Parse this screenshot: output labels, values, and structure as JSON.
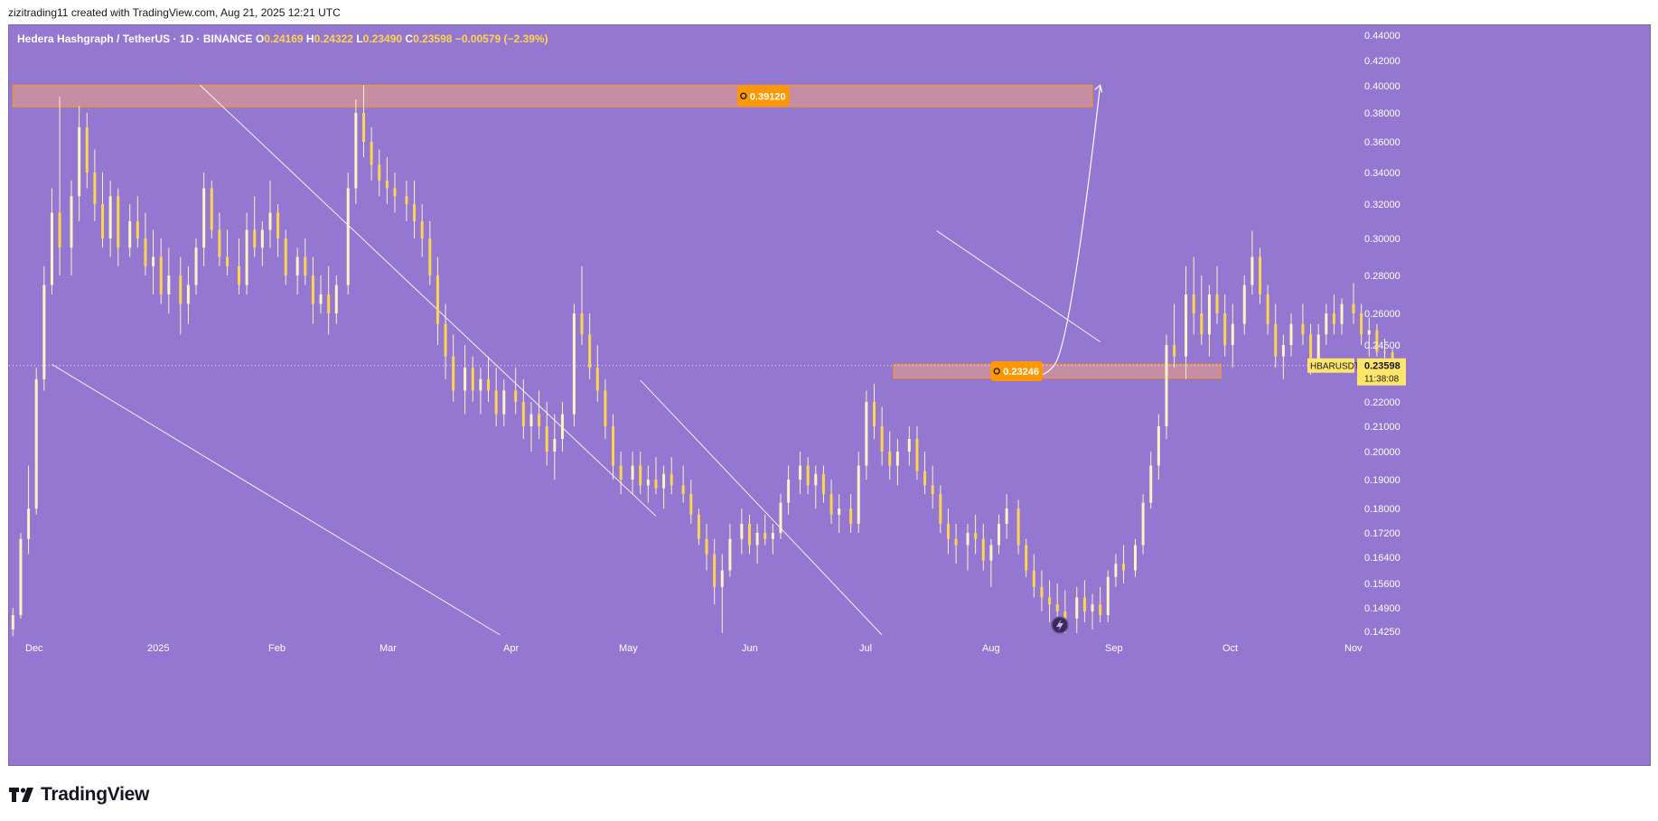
{
  "caption": "zizitrading11 created with TradingView.com, Aug 21, 2025 12:21 UTC",
  "brand": "TradingView",
  "colors": {
    "background": "#9377d0",
    "candle": "#ffd54d",
    "candle_wick": "#fff3c4",
    "zone_fill": "#f0a080",
    "zone_border": "#ff9800",
    "label_bg": "#ff9800",
    "line": "#ffffff"
  },
  "header": {
    "symbol": "Hedera Hashgraph / TetherUS · 1D · BINANCE",
    "o_label": "O",
    "o": "0.24169",
    "h_label": "H",
    "h": "0.24322",
    "l_label": "L",
    "l": "0.23490",
    "c_label": "C",
    "c": "0.23598",
    "change": "−0.00579 (−2.39%)"
  },
  "chart_data": {
    "type": "candlestick",
    "symbol": "HBARUSDT",
    "last_price": "0.23598",
    "countdown": "11:38:08",
    "x_ticks": [
      "Dec",
      "2025",
      "Feb",
      "Mar",
      "Apr",
      "May",
      "Jun",
      "Jul",
      "Aug",
      "Sep",
      "Oct",
      "Nov"
    ],
    "y_ticks": [
      "0.44000",
      "0.42000",
      "0.40000",
      "0.38000",
      "0.36000",
      "0.34000",
      "0.32000",
      "0.30000",
      "0.28000",
      "0.26000",
      "0.24500",
      "0.23598",
      "0.22000",
      "0.21000",
      "0.20000",
      "0.19000",
      "0.18000",
      "0.17200",
      "0.16400",
      "0.15600",
      "0.14900",
      "0.14250"
    ],
    "y_range": [
      0.14,
      0.445
    ],
    "x_range": [
      "2024-11-28",
      "2025-11-08"
    ],
    "zones": [
      {
        "label": "0.39120",
        "top": 0.4005,
        "bottom": 0.3845,
        "from": "2024-11-29",
        "to": "2025-09-02"
      },
      {
        "label": "0.23246",
        "top": 0.2365,
        "bottom": 0.2305,
        "from": "2025-07-13",
        "to": "2025-10-05"
      }
    ],
    "trendlines": [
      {
        "from": [
          "2025-01-16",
          0.4005
        ],
        "to": [
          "2025-05-13",
          0.1775
        ]
      },
      {
        "from": [
          "2024-12-09",
          0.2365
        ],
        "to": [
          "2025-04-03",
          0.1415
        ]
      },
      {
        "from": [
          "2025-05-09",
          0.2295
        ],
        "to": [
          "2025-07-10",
          0.1415
        ]
      },
      {
        "from": [
          "2025-07-24",
          0.3045
        ],
        "to": [
          "2025-09-04",
          0.2465
        ]
      }
    ],
    "projection": {
      "from": [
        "2025-08-19",
        0.2305
      ],
      "to": [
        "2025-09-04",
        0.4005
      ]
    },
    "candles_ohlc": [
      [
        0.143,
        0.149,
        0.141,
        0.147
      ],
      [
        0.147,
        0.172,
        0.146,
        0.17
      ],
      [
        0.17,
        0.195,
        0.165,
        0.18
      ],
      [
        0.18,
        0.235,
        0.178,
        0.23
      ],
      [
        0.23,
        0.285,
        0.225,
        0.275
      ],
      [
        0.275,
        0.33,
        0.27,
        0.315
      ],
      [
        0.315,
        0.392,
        0.28,
        0.295
      ],
      [
        0.295,
        0.335,
        0.28,
        0.325
      ],
      [
        0.325,
        0.385,
        0.31,
        0.37
      ],
      [
        0.37,
        0.38,
        0.33,
        0.34
      ],
      [
        0.34,
        0.355,
        0.31,
        0.32
      ],
      [
        0.32,
        0.34,
        0.295,
        0.3
      ],
      [
        0.3,
        0.335,
        0.29,
        0.325
      ],
      [
        0.325,
        0.33,
        0.285,
        0.295
      ],
      [
        0.295,
        0.32,
        0.29,
        0.31
      ],
      [
        0.31,
        0.325,
        0.295,
        0.3
      ],
      [
        0.3,
        0.315,
        0.28,
        0.285
      ],
      [
        0.285,
        0.305,
        0.27,
        0.29
      ],
      [
        0.29,
        0.3,
        0.265,
        0.27
      ],
      [
        0.27,
        0.295,
        0.26,
        0.28
      ],
      [
        0.28,
        0.29,
        0.25,
        0.265
      ],
      [
        0.265,
        0.285,
        0.255,
        0.275
      ],
      [
        0.275,
        0.3,
        0.27,
        0.295
      ],
      [
        0.295,
        0.34,
        0.285,
        0.33
      ],
      [
        0.33,
        0.335,
        0.3,
        0.305
      ],
      [
        0.305,
        0.315,
        0.285,
        0.29
      ],
      [
        0.29,
        0.305,
        0.28,
        0.285
      ],
      [
        0.285,
        0.3,
        0.27,
        0.275
      ],
      [
        0.275,
        0.315,
        0.27,
        0.305
      ],
      [
        0.305,
        0.325,
        0.29,
        0.295
      ],
      [
        0.295,
        0.31,
        0.285,
        0.305
      ],
      [
        0.305,
        0.335,
        0.295,
        0.315
      ],
      [
        0.315,
        0.32,
        0.29,
        0.3
      ],
      [
        0.3,
        0.305,
        0.275,
        0.28
      ],
      [
        0.28,
        0.295,
        0.27,
        0.29
      ],
      [
        0.29,
        0.3,
        0.275,
        0.28
      ],
      [
        0.28,
        0.29,
        0.255,
        0.265
      ],
      [
        0.265,
        0.28,
        0.26,
        0.27
      ],
      [
        0.27,
        0.285,
        0.25,
        0.26
      ],
      [
        0.26,
        0.28,
        0.255,
        0.275
      ],
      [
        0.275,
        0.34,
        0.27,
        0.33
      ],
      [
        0.33,
        0.39,
        0.32,
        0.38
      ],
      [
        0.38,
        0.4005,
        0.35,
        0.36
      ],
      [
        0.36,
        0.37,
        0.335,
        0.345
      ],
      [
        0.345,
        0.355,
        0.325,
        0.335
      ],
      [
        0.335,
        0.35,
        0.32,
        0.33
      ],
      [
        0.33,
        0.34,
        0.315,
        0.325
      ],
      [
        0.325,
        0.335,
        0.31,
        0.32
      ],
      [
        0.32,
        0.335,
        0.3,
        0.31
      ],
      [
        0.31,
        0.32,
        0.29,
        0.3
      ],
      [
        0.3,
        0.31,
        0.275,
        0.28
      ],
      [
        0.28,
        0.29,
        0.245,
        0.255
      ],
      [
        0.255,
        0.265,
        0.23,
        0.24
      ],
      [
        0.24,
        0.25,
        0.22,
        0.225
      ],
      [
        0.225,
        0.245,
        0.215,
        0.235
      ],
      [
        0.235,
        0.24,
        0.22,
        0.225
      ],
      [
        0.225,
        0.235,
        0.215,
        0.23
      ],
      [
        0.23,
        0.24,
        0.22,
        0.225
      ],
      [
        0.225,
        0.235,
        0.21,
        0.215
      ],
      [
        0.215,
        0.23,
        0.21,
        0.225
      ],
      [
        0.225,
        0.235,
        0.215,
        0.22
      ],
      [
        0.22,
        0.23,
        0.205,
        0.21
      ],
      [
        0.21,
        0.22,
        0.2,
        0.215
      ],
      [
        0.215,
        0.225,
        0.205,
        0.21
      ],
      [
        0.21,
        0.22,
        0.195,
        0.2
      ],
      [
        0.2,
        0.215,
        0.19,
        0.205
      ],
      [
        0.205,
        0.22,
        0.2,
        0.215
      ],
      [
        0.215,
        0.265,
        0.21,
        0.26
      ],
      [
        0.26,
        0.285,
        0.245,
        0.25
      ],
      [
        0.25,
        0.26,
        0.23,
        0.235
      ],
      [
        0.235,
        0.245,
        0.22,
        0.225
      ],
      [
        0.225,
        0.23,
        0.205,
        0.21
      ],
      [
        0.21,
        0.215,
        0.19,
        0.195
      ],
      [
        0.195,
        0.2,
        0.185,
        0.19
      ],
      [
        0.19,
        0.2,
        0.185,
        0.195
      ],
      [
        0.195,
        0.2,
        0.185,
        0.188
      ],
      [
        0.188,
        0.195,
        0.182,
        0.19
      ],
      [
        0.19,
        0.198,
        0.185,
        0.187
      ],
      [
        0.187,
        0.195,
        0.18,
        0.192
      ],
      [
        0.192,
        0.198,
        0.185,
        0.188
      ],
      [
        0.188,
        0.195,
        0.182,
        0.185
      ],
      [
        0.185,
        0.19,
        0.175,
        0.178
      ],
      [
        0.178,
        0.18,
        0.168,
        0.17
      ],
      [
        0.17,
        0.175,
        0.16,
        0.165
      ],
      [
        0.165,
        0.17,
        0.15,
        0.155
      ],
      [
        0.155,
        0.165,
        0.142,
        0.16
      ],
      [
        0.16,
        0.175,
        0.158,
        0.17
      ],
      [
        0.17,
        0.18,
        0.165,
        0.175
      ],
      [
        0.175,
        0.178,
        0.165,
        0.168
      ],
      [
        0.168,
        0.175,
        0.162,
        0.172
      ],
      [
        0.172,
        0.178,
        0.168,
        0.17
      ],
      [
        0.17,
        0.175,
        0.165,
        0.172
      ],
      [
        0.172,
        0.185,
        0.17,
        0.182
      ],
      [
        0.182,
        0.195,
        0.178,
        0.19
      ],
      [
        0.19,
        0.2,
        0.185,
        0.195
      ],
      [
        0.195,
        0.198,
        0.185,
        0.188
      ],
      [
        0.188,
        0.195,
        0.18,
        0.192
      ],
      [
        0.192,
        0.195,
        0.182,
        0.185
      ],
      [
        0.185,
        0.19,
        0.175,
        0.178
      ],
      [
        0.178,
        0.185,
        0.172,
        0.18
      ],
      [
        0.18,
        0.185,
        0.172,
        0.175
      ],
      [
        0.175,
        0.2,
        0.172,
        0.195
      ],
      [
        0.195,
        0.225,
        0.19,
        0.22
      ],
      [
        0.22,
        0.228,
        0.205,
        0.21
      ],
      [
        0.21,
        0.218,
        0.195,
        0.2
      ],
      [
        0.2,
        0.208,
        0.19,
        0.195
      ],
      [
        0.195,
        0.205,
        0.188,
        0.2
      ],
      [
        0.2,
        0.21,
        0.195,
        0.205
      ],
      [
        0.205,
        0.21,
        0.19,
        0.193
      ],
      [
        0.193,
        0.2,
        0.185,
        0.188
      ],
      [
        0.188,
        0.195,
        0.18,
        0.185
      ],
      [
        0.185,
        0.188,
        0.172,
        0.175
      ],
      [
        0.175,
        0.18,
        0.165,
        0.17
      ],
      [
        0.17,
        0.175,
        0.162,
        0.168
      ],
      [
        0.168,
        0.175,
        0.16,
        0.172
      ],
      [
        0.172,
        0.178,
        0.165,
        0.17
      ],
      [
        0.17,
        0.175,
        0.16,
        0.163
      ],
      [
        0.163,
        0.17,
        0.155,
        0.168
      ],
      [
        0.168,
        0.178,
        0.165,
        0.175
      ],
      [
        0.175,
        0.185,
        0.17,
        0.18
      ],
      [
        0.18,
        0.183,
        0.165,
        0.168
      ],
      [
        0.168,
        0.17,
        0.158,
        0.16
      ],
      [
        0.16,
        0.165,
        0.152,
        0.155
      ],
      [
        0.155,
        0.16,
        0.148,
        0.152
      ],
      [
        0.152,
        0.157,
        0.145,
        0.15
      ],
      [
        0.15,
        0.156,
        0.143,
        0.148
      ],
      [
        0.148,
        0.154,
        0.142,
        0.146
      ],
      [
        0.146,
        0.155,
        0.142,
        0.152
      ],
      [
        0.152,
        0.157,
        0.145,
        0.148
      ],
      [
        0.148,
        0.153,
        0.143,
        0.15
      ],
      [
        0.15,
        0.155,
        0.145,
        0.147
      ],
      [
        0.147,
        0.16,
        0.145,
        0.158
      ],
      [
        0.158,
        0.165,
        0.155,
        0.162
      ],
      [
        0.162,
        0.168,
        0.156,
        0.16
      ],
      [
        0.16,
        0.17,
        0.158,
        0.168
      ],
      [
        0.168,
        0.185,
        0.165,
        0.182
      ],
      [
        0.182,
        0.2,
        0.18,
        0.195
      ],
      [
        0.195,
        0.215,
        0.19,
        0.21
      ],
      [
        0.21,
        0.25,
        0.205,
        0.245
      ],
      [
        0.245,
        0.265,
        0.235,
        0.24
      ],
      [
        0.24,
        0.285,
        0.23,
        0.27
      ],
      [
        0.27,
        0.29,
        0.25,
        0.26
      ],
      [
        0.26,
        0.28,
        0.245,
        0.25
      ],
      [
        0.25,
        0.275,
        0.24,
        0.27
      ],
      [
        0.27,
        0.285,
        0.255,
        0.26
      ],
      [
        0.26,
        0.27,
        0.24,
        0.245
      ],
      [
        0.245,
        0.265,
        0.235,
        0.255
      ],
      [
        0.255,
        0.28,
        0.25,
        0.275
      ],
      [
        0.275,
        0.3045,
        0.27,
        0.29
      ],
      [
        0.29,
        0.295,
        0.265,
        0.27
      ],
      [
        0.27,
        0.275,
        0.25,
        0.255
      ],
      [
        0.255,
        0.265,
        0.235,
        0.24
      ],
      [
        0.24,
        0.25,
        0.23,
        0.245
      ],
      [
        0.245,
        0.26,
        0.24,
        0.255
      ],
      [
        0.255,
        0.265,
        0.245,
        0.25
      ],
      [
        0.25,
        0.255,
        0.232,
        0.238
      ],
      [
        0.238,
        0.255,
        0.235,
        0.25
      ],
      [
        0.25,
        0.265,
        0.245,
        0.26
      ],
      [
        0.26,
        0.27,
        0.25,
        0.255
      ],
      [
        0.255,
        0.268,
        0.25,
        0.265
      ],
      [
        0.265,
        0.276,
        0.255,
        0.26
      ],
      [
        0.26,
        0.265,
        0.245,
        0.25
      ],
      [
        0.25,
        0.258,
        0.24,
        0.252
      ],
      [
        0.252,
        0.255,
        0.24,
        0.242
      ],
      [
        0.242,
        0.248,
        0.232,
        0.2417
      ],
      [
        0.2417,
        0.2432,
        0.2349,
        0.236
      ]
    ]
  },
  "indicator": {
    "icon": "lightning-icon"
  }
}
